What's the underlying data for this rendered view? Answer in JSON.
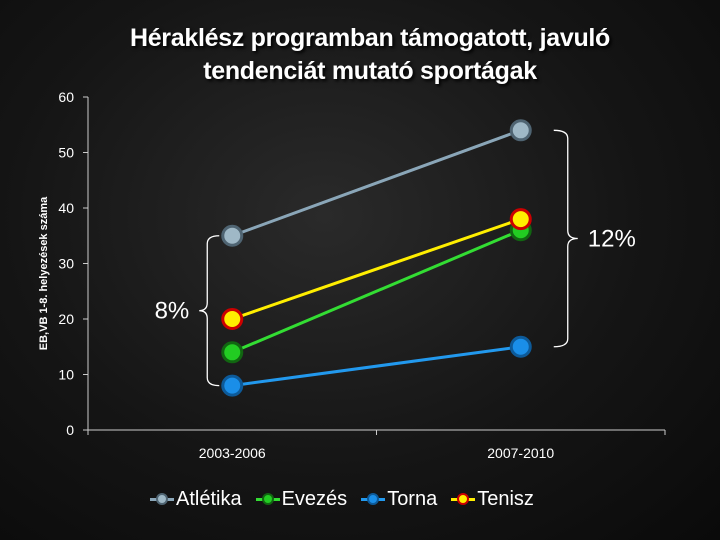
{
  "chart_data": {
    "type": "line",
    "title": "Héraklész programban támogatott, javuló tendenciát mutató sportágak",
    "title_lines": [
      "Héraklész programban támogatott, javuló",
      "tendenciát mutató sportágak"
    ],
    "ylabel": "EB,VB 1-8. helyezések száma",
    "xlabel": "",
    "categories": [
      "2003-2006",
      "2007-2010"
    ],
    "ylim": [
      0,
      60
    ],
    "yticks": [
      "0",
      "10",
      "20",
      "30",
      "40",
      "50",
      "60"
    ],
    "grid": false,
    "legend_position": "bottom",
    "series": [
      {
        "name": "Atlétika",
        "values": [
          35,
          54
        ],
        "color": "#8aa6b8",
        "marker_fill": "#9fb8c6",
        "marker_edge": "#4f6472"
      },
      {
        "name": "Evezés",
        "values": [
          14,
          36
        ],
        "color": "#33dd33",
        "marker_fill": "#22cc22",
        "marker_edge": "#116611"
      },
      {
        "name": "Torna",
        "values": [
          8,
          15
        ],
        "color": "#2299ee",
        "marker_fill": "#1a8ee8",
        "marker_edge": "#0d5a99"
      },
      {
        "name": "Tenisz",
        "values": [
          20,
          38
        ],
        "color": "#ffee00",
        "marker_fill": "#ffee00",
        "marker_edge": "#cc0000"
      }
    ],
    "annotations": [
      {
        "text": "8%",
        "brace_range": [
          8,
          35
        ],
        "at_category": "2003-2006",
        "side": "left"
      },
      {
        "text": "12%",
        "brace_range": [
          15,
          54
        ],
        "at_category": "2007-2010",
        "side": "right"
      }
    ]
  }
}
